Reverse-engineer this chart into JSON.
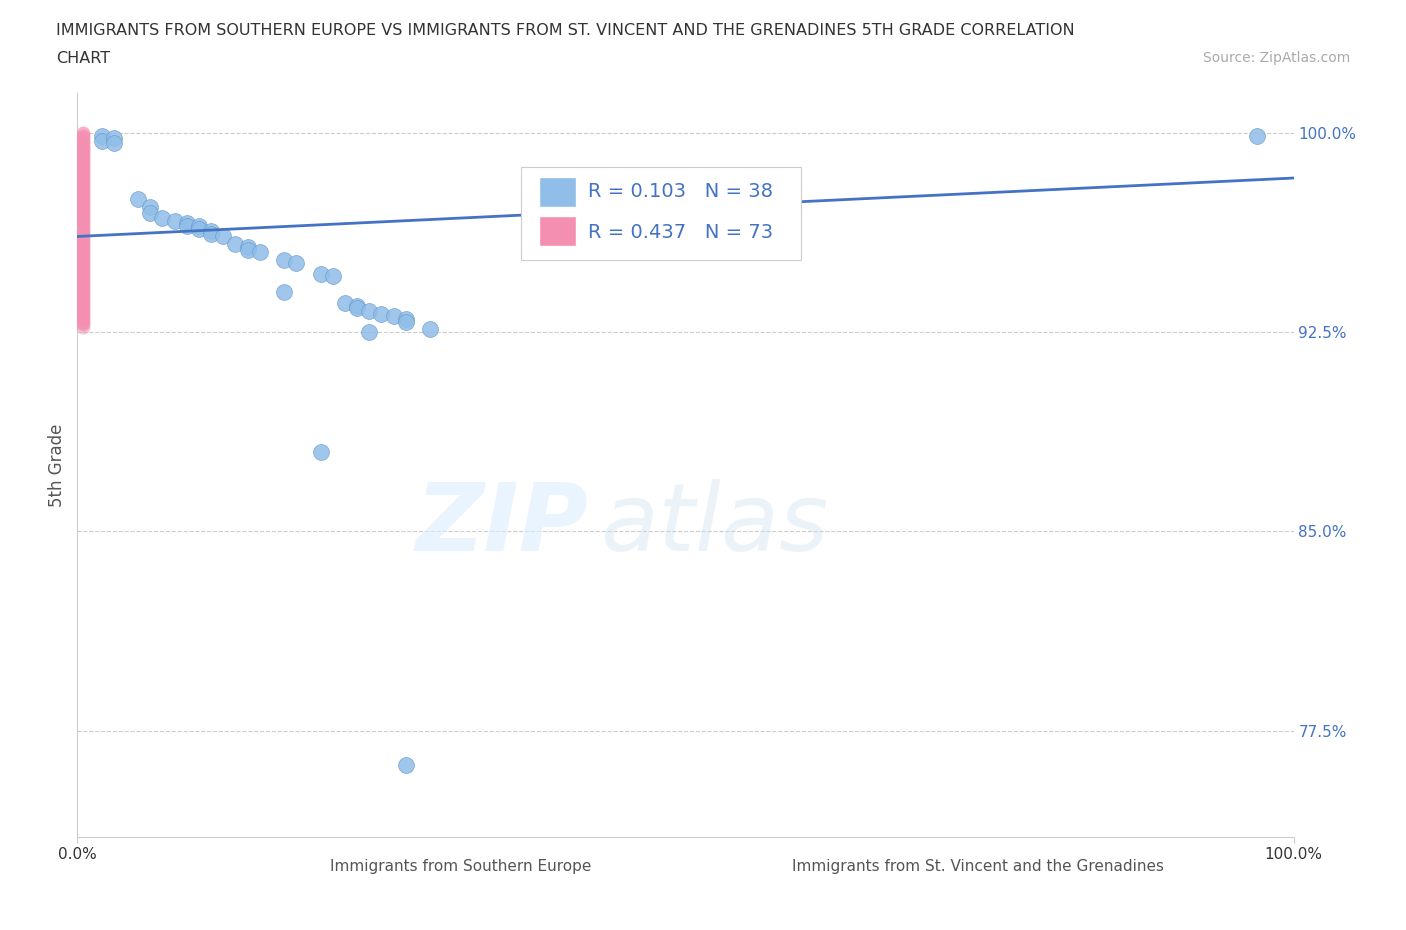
{
  "title_line1": "IMMIGRANTS FROM SOUTHERN EUROPE VS IMMIGRANTS FROM ST. VINCENT AND THE GRENADINES 5TH GRADE CORRELATION",
  "title_line2": "CHART",
  "source": "Source: ZipAtlas.com",
  "ylabel": "5th Grade",
  "xlim": [
    0.0,
    1.0
  ],
  "ylim": [
    0.735,
    1.015
  ],
  "yticks": [
    0.775,
    0.85,
    0.925,
    1.0
  ],
  "ytick_labels": [
    "77.5%",
    "85.0%",
    "92.5%",
    "100.0%"
  ],
  "xtick_labels": [
    "0.0%",
    "100.0%"
  ],
  "xticks": [
    0.0,
    1.0
  ],
  "watermark_zip": "ZIP",
  "watermark_atlas": "atlas",
  "legend_label1": "Immigrants from Southern Europe",
  "legend_label2": "Immigrants from St. Vincent and the Grenadines",
  "R1": 0.103,
  "N1": 38,
  "R2": 0.437,
  "N2": 73,
  "color_blue": "#90BEE8",
  "color_pink": "#F48FB1",
  "trendline_color": "#4472C4",
  "trendline_start_x": 0.0,
  "trendline_start_y": 0.961,
  "trendline_end_x": 1.0,
  "trendline_end_y": 0.983,
  "blue_dots_x": [
    0.02,
    0.02,
    0.03,
    0.03,
    0.05,
    0.06,
    0.06,
    0.07,
    0.08,
    0.09,
    0.09,
    0.1,
    0.1,
    0.11,
    0.11,
    0.12,
    0.13,
    0.14,
    0.14,
    0.15,
    0.17,
    0.18,
    0.2,
    0.21,
    0.22,
    0.23,
    0.23,
    0.24,
    0.25,
    0.26,
    0.27,
    0.27,
    0.29,
    0.17,
    0.24,
    0.97,
    0.2,
    0.27
  ],
  "blue_dots_y": [
    0.999,
    0.997,
    0.998,
    0.996,
    0.975,
    0.972,
    0.97,
    0.968,
    0.967,
    0.966,
    0.965,
    0.965,
    0.964,
    0.963,
    0.962,
    0.961,
    0.958,
    0.957,
    0.956,
    0.955,
    0.952,
    0.951,
    0.947,
    0.946,
    0.936,
    0.935,
    0.934,
    0.933,
    0.932,
    0.931,
    0.93,
    0.929,
    0.926,
    0.94,
    0.925,
    0.999,
    0.88,
    0.762
  ],
  "pink_dots_x": [
    0.005,
    0.005,
    0.005,
    0.005,
    0.005,
    0.005,
    0.005,
    0.005,
    0.005,
    0.005,
    0.005,
    0.005,
    0.005,
    0.005,
    0.005,
    0.005,
    0.005,
    0.005,
    0.005,
    0.005,
    0.005,
    0.005,
    0.005,
    0.005,
    0.005,
    0.005,
    0.005,
    0.005,
    0.005,
    0.005,
    0.005,
    0.005,
    0.005,
    0.005,
    0.005,
    0.005,
    0.005,
    0.005,
    0.005,
    0.005,
    0.005,
    0.005,
    0.005,
    0.005,
    0.005,
    0.005,
    0.005,
    0.005,
    0.005,
    0.005,
    0.005,
    0.005,
    0.005,
    0.005,
    0.005,
    0.005,
    0.005,
    0.005,
    0.005,
    0.005,
    0.005,
    0.005,
    0.005,
    0.005,
    0.005,
    0.005,
    0.005,
    0.005,
    0.005,
    0.005,
    0.005,
    0.005,
    0.005
  ],
  "pink_dots_y": [
    1.0,
    0.999,
    0.998,
    0.997,
    0.996,
    0.995,
    0.994,
    0.993,
    0.992,
    0.991,
    0.99,
    0.989,
    0.988,
    0.987,
    0.986,
    0.985,
    0.984,
    0.983,
    0.982,
    0.981,
    0.98,
    0.979,
    0.978,
    0.977,
    0.976,
    0.975,
    0.974,
    0.973,
    0.972,
    0.971,
    0.97,
    0.969,
    0.968,
    0.967,
    0.966,
    0.965,
    0.964,
    0.963,
    0.962,
    0.961,
    0.96,
    0.959,
    0.958,
    0.957,
    0.956,
    0.955,
    0.954,
    0.953,
    0.952,
    0.951,
    0.95,
    0.949,
    0.948,
    0.947,
    0.946,
    0.945,
    0.944,
    0.943,
    0.942,
    0.941,
    0.94,
    0.939,
    0.938,
    0.937,
    0.936,
    0.935,
    0.934,
    0.933,
    0.932,
    0.931,
    0.93,
    0.929,
    0.928
  ],
  "pink_outlier_x": [
    0.005
  ],
  "pink_outlier_y": [
    0.927
  ]
}
